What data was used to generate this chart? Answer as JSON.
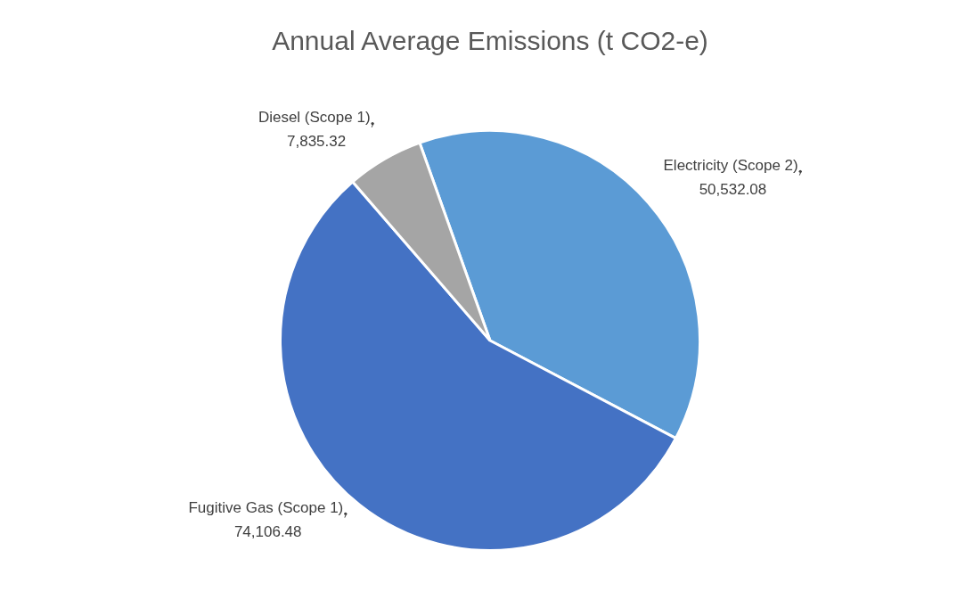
{
  "chart_data": {
    "type": "pie",
    "title": "Annual Average Emissions (t CO2-e)",
    "categories": [
      "Electricity (Scope 2)",
      "Fugitive Gas (Scope 1)",
      "Diesel (Scope 1)"
    ],
    "values": [
      50532.08,
      74106.48,
      7835.32
    ],
    "colors": [
      "#5b9bd5",
      "#4472c4",
      "#a5a5a5"
    ],
    "value_labels": [
      "50,532.08",
      "74,106.48",
      "7,835.32"
    ],
    "legend": false
  }
}
